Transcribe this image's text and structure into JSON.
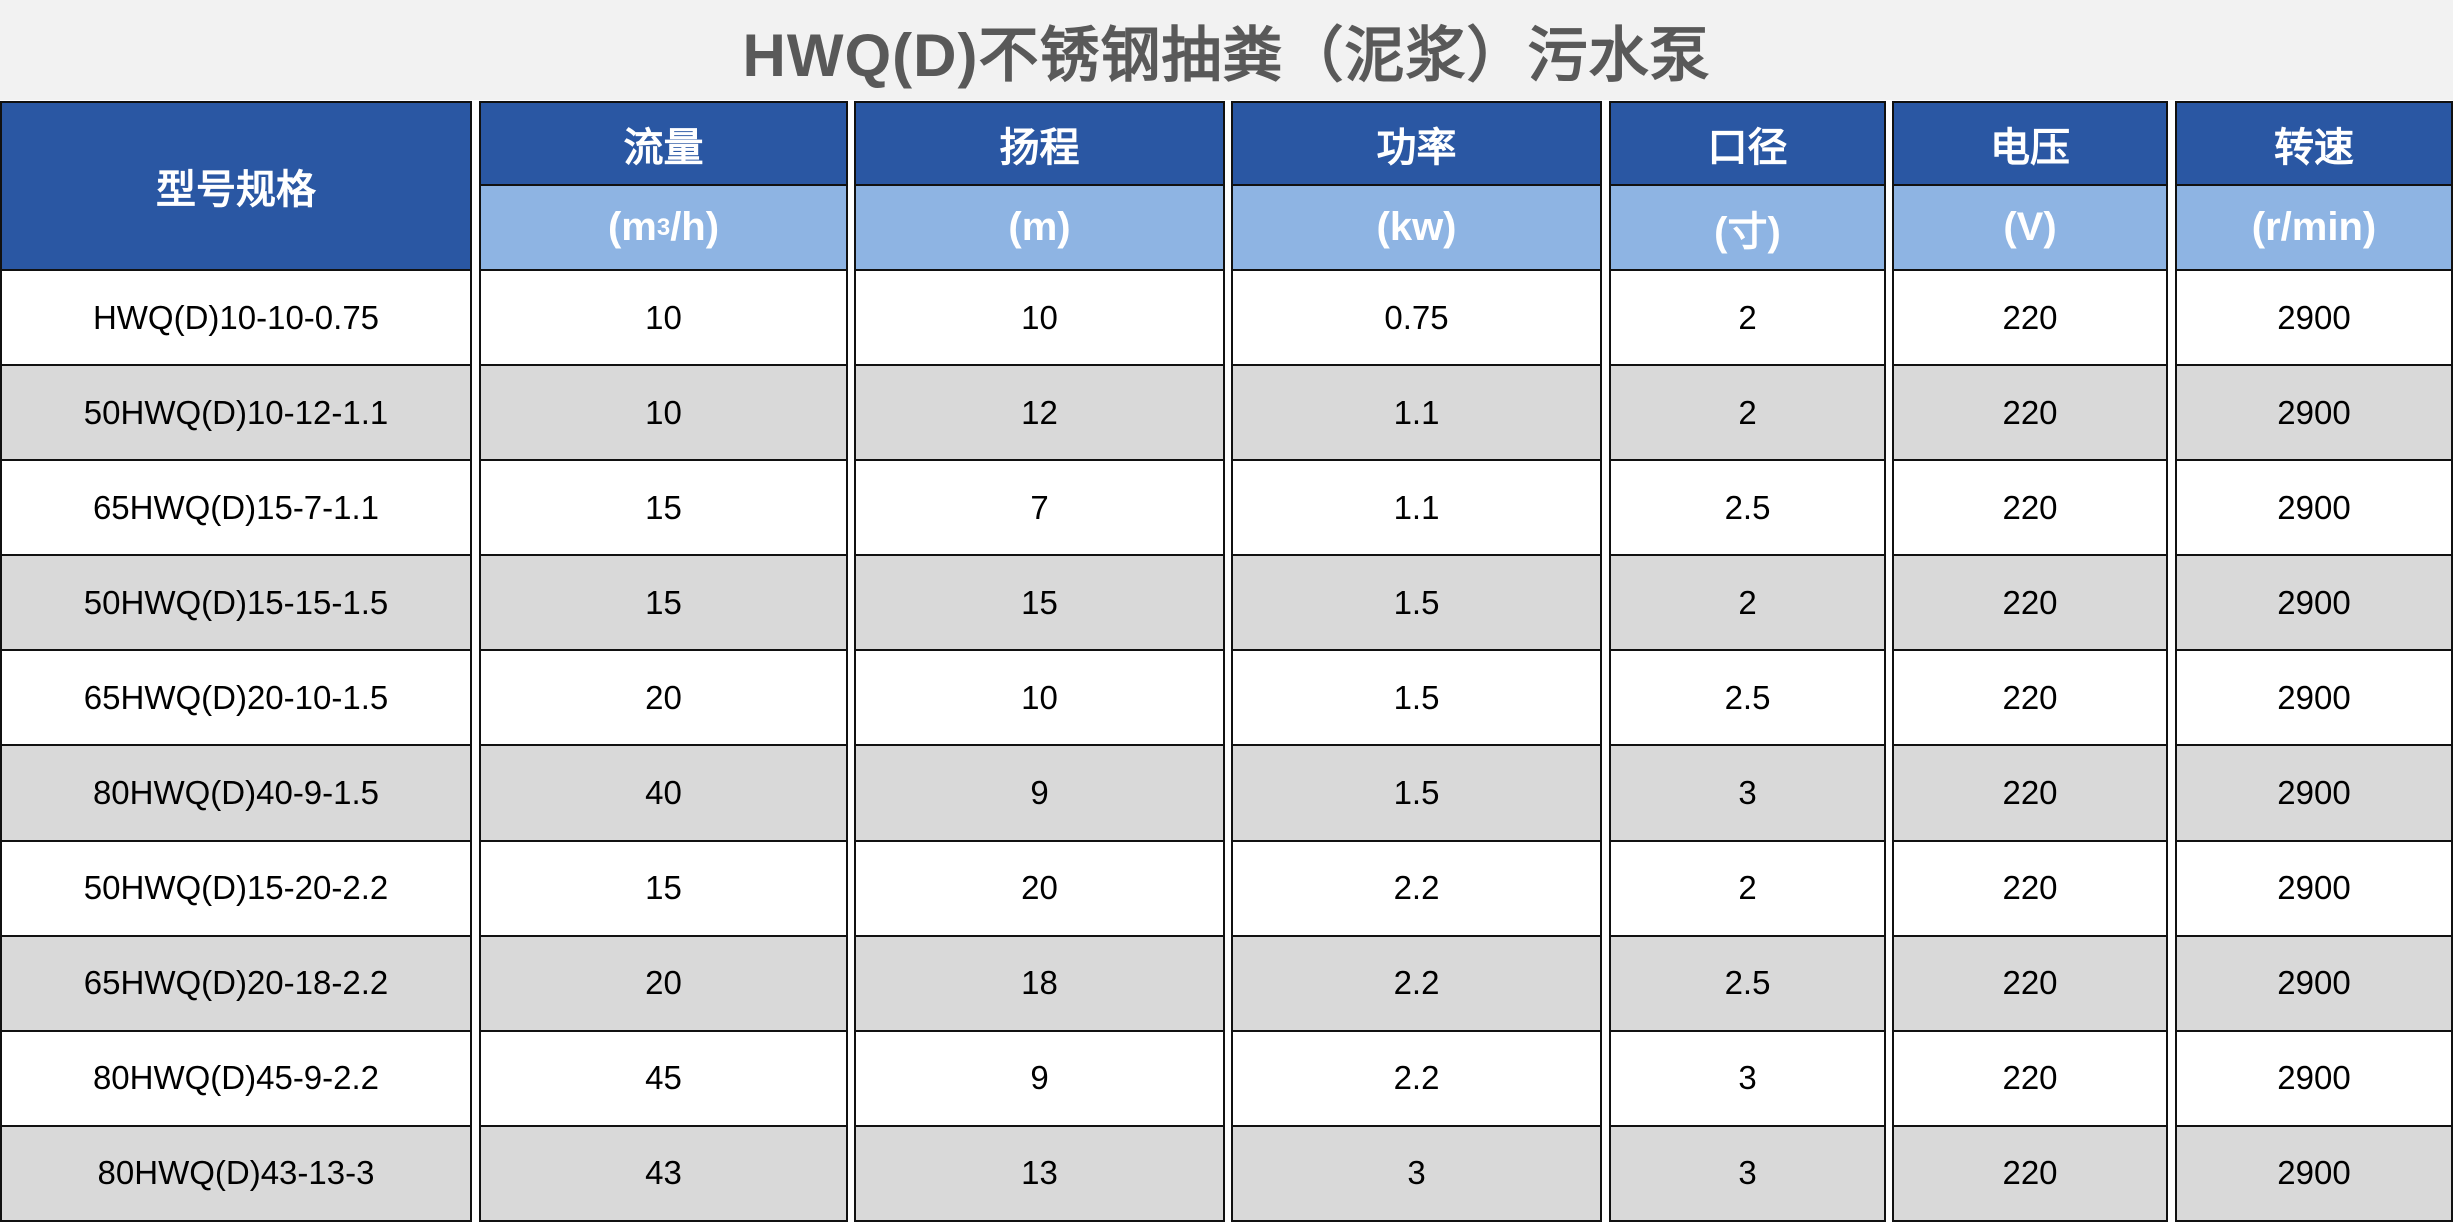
{
  "title": "HWQ(D)不锈钢抽粪（泥浆）污水泵",
  "colors": {
    "header_dark": "#2a57a3",
    "header_light": "#8eb4e3",
    "row_alt": "#d9d9d9",
    "title_bg": "#f2f2f2"
  },
  "columns": [
    {
      "label": "型号规格"
    },
    {
      "label": "流量",
      "unit_pre": "(m",
      "unit_sup": "3",
      "unit_post": "/h)"
    },
    {
      "label": "扬程",
      "unit": "(m)"
    },
    {
      "label": "功率",
      "unit": "(kw)"
    },
    {
      "label": "口径",
      "unit": "(寸)"
    },
    {
      "label": "电压",
      "unit": "(V)"
    },
    {
      "label": "转速",
      "unit": "(r/min)"
    }
  ],
  "rows": [
    [
      "HWQ(D)10-10-0.75",
      "10",
      "10",
      "0.75",
      "2",
      "220",
      "2900"
    ],
    [
      "50HWQ(D)10-12-1.1",
      "10",
      "12",
      "1.1",
      "2",
      "220",
      "2900"
    ],
    [
      "65HWQ(D)15-7-1.1",
      "15",
      "7",
      "1.1",
      "2.5",
      "220",
      "2900"
    ],
    [
      "50HWQ(D)15-15-1.5",
      "15",
      "15",
      "1.5",
      "2",
      "220",
      "2900"
    ],
    [
      "65HWQ(D)20-10-1.5",
      "20",
      "10",
      "1.5",
      "2.5",
      "220",
      "2900"
    ],
    [
      "80HWQ(D)40-9-1.5",
      "40",
      "9",
      "1.5",
      "3",
      "220",
      "2900"
    ],
    [
      "50HWQ(D)15-20-2.2",
      "15",
      "20",
      "2.2",
      "2",
      "220",
      "2900"
    ],
    [
      "65HWQ(D)20-18-2.2",
      "20",
      "18",
      "2.2",
      "2.5",
      "220",
      "2900"
    ],
    [
      "80HWQ(D)45-9-2.2",
      "45",
      "9",
      "2.2",
      "3",
      "220",
      "2900"
    ],
    [
      "80HWQ(D)43-13-3",
      "43",
      "13",
      "3",
      "3",
      "220",
      "2900"
    ]
  ]
}
